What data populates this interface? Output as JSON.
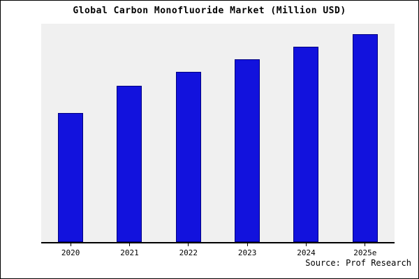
{
  "chart_data": {
    "type": "bar",
    "title": "Global Carbon Monofluoride Market (Million USD)",
    "categories": [
      "2020",
      "2021",
      "2022",
      "2023",
      "2024",
      "2025e"
    ],
    "values": [
      62,
      75,
      82,
      88,
      94,
      100
    ],
    "xlabel": "",
    "ylabel": "",
    "ylim": [
      0,
      105
    ],
    "grid": false,
    "legend": false,
    "bar_color": "#1212dd",
    "bar_border_color": "#000080",
    "plot_bg": "#f0f0f0",
    "source": "Source: Prof Research"
  }
}
